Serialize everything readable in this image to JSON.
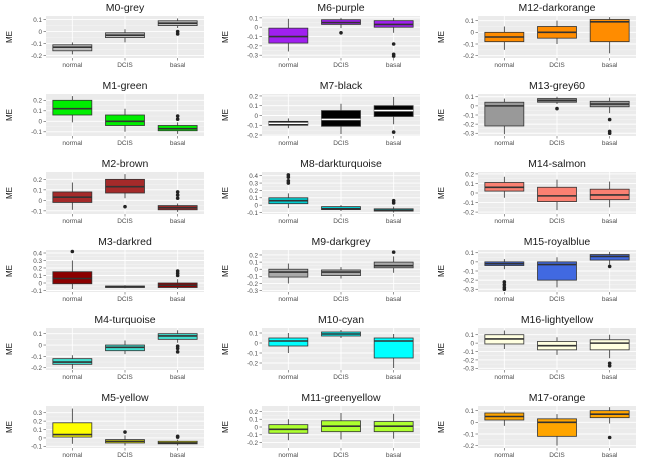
{
  "figure": {
    "ylabel": "ME",
    "categories": [
      "normal",
      "DCIS",
      "basal"
    ],
    "grid": true,
    "panel_background": "#ebebeb",
    "box_outline": "#333333"
  },
  "chart_data": [
    {
      "type": "box",
      "title": "M0-grey",
      "color": "#bebebe",
      "ylim": [
        -0.22,
        0.13
      ],
      "yticks": [
        -0.2,
        -0.1,
        0,
        0.1
      ],
      "boxes": [
        {
          "q1": -0.16,
          "median": -0.13,
          "q3": -0.11,
          "low": -0.19,
          "high": -0.09,
          "outliers": []
        },
        {
          "q1": -0.05,
          "median": -0.03,
          "q3": -0.01,
          "low": -0.09,
          "high": 0.02,
          "outliers": []
        },
        {
          "q1": 0.05,
          "median": 0.07,
          "q3": 0.09,
          "low": 0.03,
          "high": 0.11,
          "outliers": [
            0.0,
            -0.02
          ]
        }
      ]
    },
    {
      "type": "box",
      "title": "M6-purple",
      "color": "#a020f0",
      "ylim": [
        -0.33,
        0.12
      ],
      "yticks": [
        -0.3,
        -0.2,
        -0.1,
        0,
        0.1
      ],
      "boxes": [
        {
          "q1": -0.17,
          "median": -0.1,
          "q3": -0.01,
          "low": -0.26,
          "high": 0.09,
          "outliers": []
        },
        {
          "q1": 0.03,
          "median": 0.05,
          "q3": 0.08,
          "low": -0.01,
          "high": 0.1,
          "outliers": [
            -0.06
          ]
        },
        {
          "q1": 0.0,
          "median": 0.03,
          "q3": 0.07,
          "low": -0.06,
          "high": 0.1,
          "outliers": [
            -0.18,
            -0.29,
            -0.31
          ]
        }
      ]
    },
    {
      "type": "box",
      "title": "M12-darkorange",
      "color": "#ff8c00",
      "ylim": [
        -0.22,
        0.14
      ],
      "yticks": [
        -0.2,
        -0.1,
        0,
        0.1
      ],
      "boxes": [
        {
          "q1": -0.08,
          "median": -0.04,
          "q3": 0.0,
          "low": -0.15,
          "high": 0.05,
          "outliers": []
        },
        {
          "q1": -0.05,
          "median": 0.0,
          "q3": 0.05,
          "low": -0.1,
          "high": 0.1,
          "outliers": []
        },
        {
          "q1": -0.08,
          "median": 0.09,
          "q3": 0.11,
          "low": -0.18,
          "high": 0.13,
          "outliers": []
        }
      ]
    },
    {
      "type": "box",
      "title": "M1-green",
      "color": "#00ee00",
      "ylim": [
        -0.14,
        0.26
      ],
      "yticks": [
        -0.1,
        0,
        0.1,
        0.2
      ],
      "boxes": [
        {
          "q1": 0.06,
          "median": 0.12,
          "q3": 0.2,
          "low": -0.01,
          "high": 0.24,
          "outliers": []
        },
        {
          "q1": -0.04,
          "median": 0.0,
          "q3": 0.06,
          "low": -0.1,
          "high": 0.12,
          "outliers": []
        },
        {
          "q1": -0.09,
          "median": -0.07,
          "q3": -0.04,
          "low": -0.12,
          "high": -0.01,
          "outliers": [
            0.02,
            0.05
          ]
        }
      ]
    },
    {
      "type": "box",
      "title": "M7-black",
      "color": "#000000",
      "ylim": [
        -0.21,
        0.22
      ],
      "yticks": [
        -0.2,
        -0.1,
        0,
        0.1,
        0.2
      ],
      "boxes": [
        {
          "q1": -0.1,
          "median": -0.08,
          "q3": -0.06,
          "low": -0.13,
          "high": -0.03,
          "outliers": []
        },
        {
          "q1": -0.11,
          "median": -0.04,
          "q3": 0.05,
          "low": -0.19,
          "high": 0.12,
          "outliers": []
        },
        {
          "q1": -0.01,
          "median": 0.05,
          "q3": 0.1,
          "low": -0.09,
          "high": 0.19,
          "outliers": [
            -0.17
          ]
        }
      ]
    },
    {
      "type": "box",
      "title": "M13-grey60",
      "color": "#999999",
      "ylim": [
        -0.33,
        0.13
      ],
      "yticks": [
        -0.3,
        -0.2,
        -0.1,
        0,
        0.1
      ],
      "boxes": [
        {
          "q1": -0.22,
          "median": 0.0,
          "q3": 0.04,
          "low": -0.31,
          "high": 0.08,
          "outliers": []
        },
        {
          "q1": 0.04,
          "median": 0.06,
          "q3": 0.08,
          "low": 0.02,
          "high": 0.1,
          "outliers": [
            -0.03
          ]
        },
        {
          "q1": -0.01,
          "median": 0.02,
          "q3": 0.05,
          "low": -0.08,
          "high": 0.09,
          "outliers": [
            -0.15,
            -0.28,
            -0.3
          ]
        }
      ]
    },
    {
      "type": "box",
      "title": "M2-brown",
      "color": "#a52a2a",
      "ylim": [
        -0.13,
        0.27
      ],
      "yticks": [
        -0.1,
        0,
        0.1,
        0.2
      ],
      "boxes": [
        {
          "q1": -0.02,
          "median": 0.03,
          "q3": 0.08,
          "low": -0.09,
          "high": 0.17,
          "outliers": []
        },
        {
          "q1": 0.07,
          "median": 0.13,
          "q3": 0.2,
          "low": 0.02,
          "high": 0.25,
          "outliers": [
            -0.06
          ]
        },
        {
          "q1": -0.09,
          "median": -0.07,
          "q3": -0.05,
          "low": -0.11,
          "high": -0.03,
          "outliers": [
            0.02,
            0.05,
            0.08
          ]
        }
      ]
    },
    {
      "type": "box",
      "title": "M8-darkturquoise",
      "color": "#00ced1",
      "ylim": [
        -0.12,
        0.45
      ],
      "yticks": [
        -0.1,
        0,
        0.1,
        0.2,
        0.3,
        0.4
      ],
      "boxes": [
        {
          "q1": 0.02,
          "median": 0.06,
          "q3": 0.1,
          "low": -0.04,
          "high": 0.16,
          "outliers": [
            0.3,
            0.33,
            0.38,
            0.41
          ]
        },
        {
          "q1": -0.06,
          "median": -0.05,
          "q3": -0.02,
          "low": -0.08,
          "high": 0.0,
          "outliers": []
        },
        {
          "q1": -0.08,
          "median": -0.07,
          "q3": -0.05,
          "low": -0.1,
          "high": -0.02,
          "outliers": [
            0.03,
            0.06
          ]
        }
      ]
    },
    {
      "type": "box",
      "title": "M14-salmon",
      "color": "#fa8072",
      "ylim": [
        -0.22,
        0.22
      ],
      "yticks": [
        -0.2,
        -0.1,
        0,
        0.1,
        0.2
      ],
      "boxes": [
        {
          "q1": 0.02,
          "median": 0.06,
          "q3": 0.11,
          "low": -0.05,
          "high": 0.17,
          "outliers": []
        },
        {
          "q1": -0.09,
          "median": -0.03,
          "q3": 0.06,
          "low": -0.18,
          "high": 0.14,
          "outliers": []
        },
        {
          "q1": -0.07,
          "median": -0.02,
          "q3": 0.04,
          "low": -0.15,
          "high": 0.12,
          "outliers": []
        }
      ]
    },
    {
      "type": "box",
      "title": "M3-darkred",
      "color": "#8b0000",
      "ylim": [
        -0.12,
        0.44
      ],
      "yticks": [
        -0.1,
        0,
        0.1,
        0.2,
        0.3,
        0.4
      ],
      "boxes": [
        {
          "q1": -0.01,
          "median": 0.06,
          "q3": 0.15,
          "low": -0.08,
          "high": 0.3,
          "outliers": [
            0.42
          ]
        },
        {
          "q1": -0.06,
          "median": -0.05,
          "q3": -0.04,
          "low": -0.07,
          "high": -0.03,
          "outliers": []
        },
        {
          "q1": -0.06,
          "median": -0.03,
          "q3": 0.0,
          "low": -0.08,
          "high": 0.05,
          "outliers": [
            0.1,
            0.13,
            0.16
          ]
        }
      ]
    },
    {
      "type": "box",
      "title": "M9-darkgrey",
      "color": "#a9a9a9",
      "ylim": [
        -0.32,
        0.27
      ],
      "yticks": [
        -0.3,
        -0.2,
        -0.1,
        0,
        0.1,
        0.2
      ],
      "boxes": [
        {
          "q1": -0.11,
          "median": -0.04,
          "q3": 0.0,
          "low": -0.2,
          "high": 0.08,
          "outliers": []
        },
        {
          "q1": -0.09,
          "median": -0.04,
          "q3": -0.01,
          "low": -0.13,
          "high": 0.03,
          "outliers": []
        },
        {
          "q1": 0.02,
          "median": 0.05,
          "q3": 0.1,
          "low": -0.05,
          "high": 0.18,
          "outliers": [
            0.24
          ]
        }
      ]
    },
    {
      "type": "box",
      "title": "M15-royalblue",
      "color": "#4169e1",
      "ylim": [
        -0.33,
        0.13
      ],
      "yticks": [
        -0.3,
        -0.2,
        -0.1,
        0,
        0.1
      ],
      "boxes": [
        {
          "q1": -0.04,
          "median": -0.02,
          "q3": 0.0,
          "low": -0.08,
          "high": 0.03,
          "outliers": [
            -0.22,
            -0.25,
            -0.28,
            -0.3
          ]
        },
        {
          "q1": -0.2,
          "median": -0.03,
          "q3": 0.0,
          "low": -0.28,
          "high": 0.05,
          "outliers": []
        },
        {
          "q1": 0.02,
          "median": 0.06,
          "q3": 0.08,
          "low": -0.03,
          "high": 0.11,
          "outliers": [
            -0.05
          ]
        }
      ]
    },
    {
      "type": "box",
      "title": "M4-turquoise",
      "color": "#40e0d0",
      "ylim": [
        -0.22,
        0.15
      ],
      "yticks": [
        -0.2,
        -0.1,
        0,
        0.1
      ],
      "boxes": [
        {
          "q1": -0.17,
          "median": -0.15,
          "q3": -0.12,
          "low": -0.21,
          "high": -0.09,
          "outliers": []
        },
        {
          "q1": -0.05,
          "median": -0.02,
          "q3": 0.0,
          "low": -0.08,
          "high": 0.04,
          "outliers": []
        },
        {
          "q1": 0.05,
          "median": 0.08,
          "q3": 0.1,
          "low": 0.02,
          "high": 0.13,
          "outliers": [
            -0.01,
            -0.03,
            -0.06
          ]
        }
      ]
    },
    {
      "type": "box",
      "title": "M10-cyan",
      "color": "#00ffff",
      "ylim": [
        -0.27,
        0.15
      ],
      "yticks": [
        -0.2,
        -0.1,
        0,
        0.1
      ],
      "boxes": [
        {
          "q1": -0.03,
          "median": 0.02,
          "q3": 0.05,
          "low": -0.1,
          "high": 0.1,
          "outliers": []
        },
        {
          "q1": 0.07,
          "median": 0.09,
          "q3": 0.11,
          "low": 0.05,
          "high": 0.13,
          "outliers": []
        },
        {
          "q1": -0.15,
          "median": 0.02,
          "q3": 0.05,
          "low": -0.25,
          "high": 0.09,
          "outliers": []
        }
      ]
    },
    {
      "type": "box",
      "title": "M16-lightyellow",
      "color": "#ffffe0",
      "ylim": [
        -0.32,
        0.18
      ],
      "yticks": [
        -0.3,
        -0.2,
        -0.1,
        0,
        0.1
      ],
      "boxes": [
        {
          "q1": -0.01,
          "median": 0.05,
          "q3": 0.1,
          "low": -0.07,
          "high": 0.15,
          "outliers": []
        },
        {
          "q1": -0.08,
          "median": -0.03,
          "q3": 0.02,
          "low": -0.14,
          "high": 0.07,
          "outliers": []
        },
        {
          "q1": -0.08,
          "median": 0.0,
          "q3": 0.04,
          "low": -0.18,
          "high": 0.1,
          "outliers": [
            -0.24,
            -0.27
          ]
        }
      ]
    },
    {
      "type": "box",
      "title": "M5-yellow",
      "color": "#ffff00",
      "ylim": [
        -0.12,
        0.38
      ],
      "yticks": [
        -0.1,
        0,
        0.1,
        0.2,
        0.3
      ],
      "boxes": [
        {
          "q1": 0.01,
          "median": 0.04,
          "q3": 0.18,
          "low": -0.07,
          "high": 0.35,
          "outliers": []
        },
        {
          "q1": -0.06,
          "median": -0.04,
          "q3": -0.02,
          "low": -0.09,
          "high": 0.03,
          "outliers": [
            0.07
          ]
        },
        {
          "q1": -0.07,
          "median": -0.06,
          "q3": -0.04,
          "low": -0.09,
          "high": -0.02,
          "outliers": [
            0.02,
            0.01
          ]
        }
      ]
    },
    {
      "type": "box",
      "title": "M11-greenyellow",
      "color": "#adff2f",
      "ylim": [
        -0.27,
        0.27
      ],
      "yticks": [
        -0.2,
        -0.1,
        0,
        0.1,
        0.2
      ],
      "boxes": [
        {
          "q1": -0.08,
          "median": -0.03,
          "q3": 0.03,
          "low": -0.17,
          "high": 0.1,
          "outliers": []
        },
        {
          "q1": -0.06,
          "median": 0.01,
          "q3": 0.08,
          "low": -0.16,
          "high": 0.18,
          "outliers": []
        },
        {
          "q1": -0.06,
          "median": 0.01,
          "q3": 0.07,
          "low": -0.15,
          "high": 0.17,
          "outliers": []
        }
      ]
    },
    {
      "type": "box",
      "title": "M17-orange",
      "color": "#ffa500",
      "ylim": [
        -0.22,
        0.14
      ],
      "yticks": [
        -0.2,
        -0.1,
        0,
        0.1
      ],
      "boxes": [
        {
          "q1": 0.02,
          "median": 0.05,
          "q3": 0.08,
          "low": -0.03,
          "high": 0.1,
          "outliers": []
        },
        {
          "q1": -0.12,
          "median": 0.0,
          "q3": 0.03,
          "low": -0.2,
          "high": 0.07,
          "outliers": []
        },
        {
          "q1": 0.04,
          "median": 0.07,
          "q3": 0.1,
          "low": -0.01,
          "high": 0.13,
          "outliers": [
            -0.13
          ]
        }
      ]
    }
  ]
}
